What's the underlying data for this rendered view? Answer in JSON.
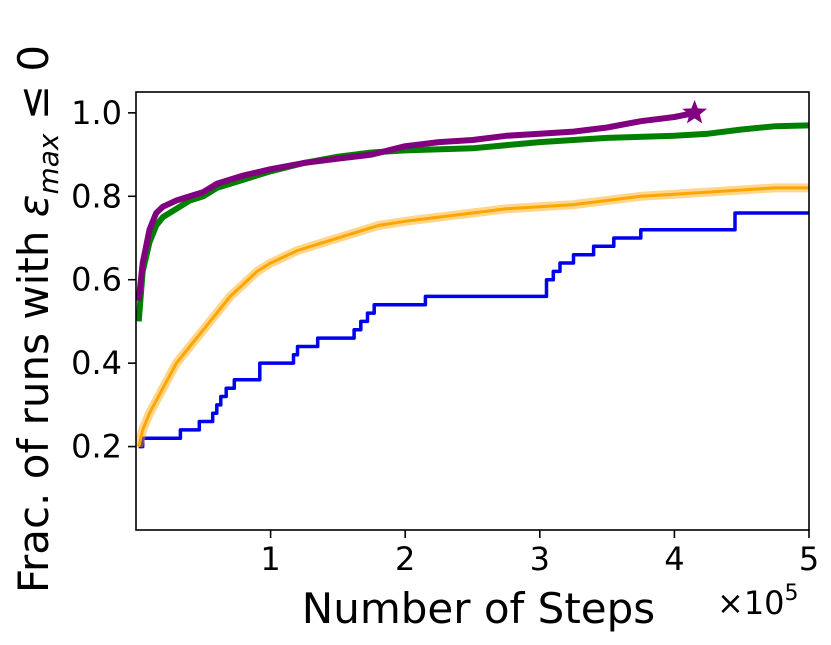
{
  "chart_data": {
    "type": "line",
    "title": "",
    "xlabel": "Number of Steps",
    "ylabel_parts": [
      "Frac. of runs with ",
      "ε",
      "max",
      " ≤ 0"
    ],
    "x_multiplier": "×10",
    "x_multiplier_exp": "5",
    "xlim": [
      0,
      5
    ],
    "ylim": [
      0.0,
      1.05
    ],
    "xticks": [
      1,
      2,
      3,
      4,
      5
    ],
    "xtick_labels": [
      "1",
      "2",
      "3",
      "4",
      "5"
    ],
    "yticks": [
      0.2,
      0.4,
      0.6,
      0.8,
      1.0
    ],
    "ytick_labels": [
      "0.2",
      "0.4",
      "0.6",
      "0.8",
      "1.0"
    ],
    "grid": false,
    "series": [
      {
        "color": "#0000ee",
        "step": true,
        "points": [
          [
            0.02,
            0.2
          ],
          [
            0.05,
            0.22
          ],
          [
            0.33,
            0.24
          ],
          [
            0.47,
            0.26
          ],
          [
            0.57,
            0.28
          ],
          [
            0.6,
            0.3
          ],
          [
            0.63,
            0.32
          ],
          [
            0.67,
            0.34
          ],
          [
            0.73,
            0.36
          ],
          [
            0.92,
            0.4
          ],
          [
            1.17,
            0.42
          ],
          [
            1.2,
            0.44
          ],
          [
            1.35,
            0.46
          ],
          [
            1.62,
            0.48
          ],
          [
            1.67,
            0.5
          ],
          [
            1.72,
            0.52
          ],
          [
            1.77,
            0.54
          ],
          [
            2.15,
            0.56
          ],
          [
            3.05,
            0.6
          ],
          [
            3.1,
            0.62
          ],
          [
            3.15,
            0.64
          ],
          [
            3.25,
            0.66
          ],
          [
            3.4,
            0.68
          ],
          [
            3.55,
            0.7
          ],
          [
            3.75,
            0.72
          ],
          [
            4.45,
            0.76
          ],
          [
            5.0,
            0.76
          ]
        ]
      },
      {
        "color": "#ffa500",
        "step": false,
        "band": true,
        "points": [
          [
            0.02,
            0.2
          ],
          [
            0.05,
            0.24
          ],
          [
            0.1,
            0.28
          ],
          [
            0.15,
            0.31
          ],
          [
            0.2,
            0.34
          ],
          [
            0.25,
            0.37
          ],
          [
            0.3,
            0.4
          ],
          [
            0.35,
            0.42
          ],
          [
            0.4,
            0.44
          ],
          [
            0.5,
            0.48
          ],
          [
            0.6,
            0.52
          ],
          [
            0.7,
            0.56
          ],
          [
            0.8,
            0.59
          ],
          [
            0.9,
            0.62
          ],
          [
            1.0,
            0.64
          ],
          [
            1.2,
            0.67
          ],
          [
            1.4,
            0.69
          ],
          [
            1.6,
            0.71
          ],
          [
            1.8,
            0.73
          ],
          [
            2.0,
            0.74
          ],
          [
            2.25,
            0.75
          ],
          [
            2.5,
            0.76
          ],
          [
            2.75,
            0.77
          ],
          [
            3.0,
            0.775
          ],
          [
            3.25,
            0.78
          ],
          [
            3.5,
            0.79
          ],
          [
            3.75,
            0.8
          ],
          [
            4.0,
            0.805
          ],
          [
            4.25,
            0.81
          ],
          [
            4.5,
            0.815
          ],
          [
            4.75,
            0.82
          ],
          [
            5.0,
            0.82
          ]
        ]
      },
      {
        "color": "#008000",
        "step": false,
        "points": [
          [
            0.02,
            0.5
          ],
          [
            0.05,
            0.62
          ],
          [
            0.1,
            0.69
          ],
          [
            0.15,
            0.73
          ],
          [
            0.2,
            0.75
          ],
          [
            0.3,
            0.77
          ],
          [
            0.4,
            0.79
          ],
          [
            0.5,
            0.8
          ],
          [
            0.6,
            0.82
          ],
          [
            0.8,
            0.84
          ],
          [
            1.0,
            0.86
          ],
          [
            1.25,
            0.88
          ],
          [
            1.5,
            0.895
          ],
          [
            1.75,
            0.905
          ],
          [
            2.0,
            0.91
          ],
          [
            2.5,
            0.915
          ],
          [
            3.0,
            0.93
          ],
          [
            3.5,
            0.94
          ],
          [
            4.0,
            0.945
          ],
          [
            4.25,
            0.95
          ],
          [
            4.5,
            0.96
          ],
          [
            4.75,
            0.968
          ],
          [
            5.0,
            0.97
          ]
        ]
      },
      {
        "color": "#800080",
        "step": false,
        "points": [
          [
            0.02,
            0.55
          ],
          [
            0.05,
            0.64
          ],
          [
            0.1,
            0.72
          ],
          [
            0.15,
            0.76
          ],
          [
            0.2,
            0.775
          ],
          [
            0.3,
            0.79
          ],
          [
            0.4,
            0.8
          ],
          [
            0.5,
            0.81
          ],
          [
            0.6,
            0.83
          ],
          [
            0.8,
            0.85
          ],
          [
            1.0,
            0.865
          ],
          [
            1.25,
            0.88
          ],
          [
            1.5,
            0.89
          ],
          [
            1.75,
            0.9
          ],
          [
            2.0,
            0.92
          ],
          [
            2.25,
            0.93
          ],
          [
            2.5,
            0.935
          ],
          [
            2.75,
            0.945
          ],
          [
            3.0,
            0.95
          ],
          [
            3.25,
            0.955
          ],
          [
            3.5,
            0.965
          ],
          [
            3.75,
            0.98
          ],
          [
            4.0,
            0.99
          ],
          [
            4.15,
            1.0
          ]
        ],
        "end_marker": "star"
      }
    ]
  }
}
